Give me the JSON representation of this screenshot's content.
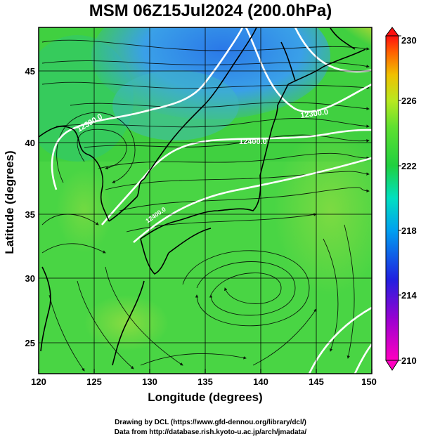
{
  "title": "MSM 06Z15Jul2024 (200.0hPa)",
  "axes": {
    "xlabel": "Longitude (degrees)",
    "ylabel": "Latitude  (degrees)",
    "xticks": [
      "120",
      "125",
      "130",
      "135",
      "140",
      "145",
      "150"
    ],
    "yticks": [
      "25",
      "30",
      "35",
      "40",
      "45"
    ],
    "xrange": [
      120,
      150
    ],
    "yrange": [
      22.5,
      48
    ]
  },
  "colorbar": {
    "min": 210,
    "max": 230,
    "ticks": [
      "230",
      "226",
      "222",
      "218",
      "214",
      "210"
    ]
  },
  "contours": {
    "labels": [
      "12300.0",
      "12400.0",
      "12300.0",
      "12400.0"
    ]
  },
  "credits": {
    "line1": "Drawing by DCL (https://www.gfd-dennou.org/library/dcl/)",
    "line2": "Data from http://database.rish.kyoto-u.ac.jp/arch/jmadata/"
  }
}
